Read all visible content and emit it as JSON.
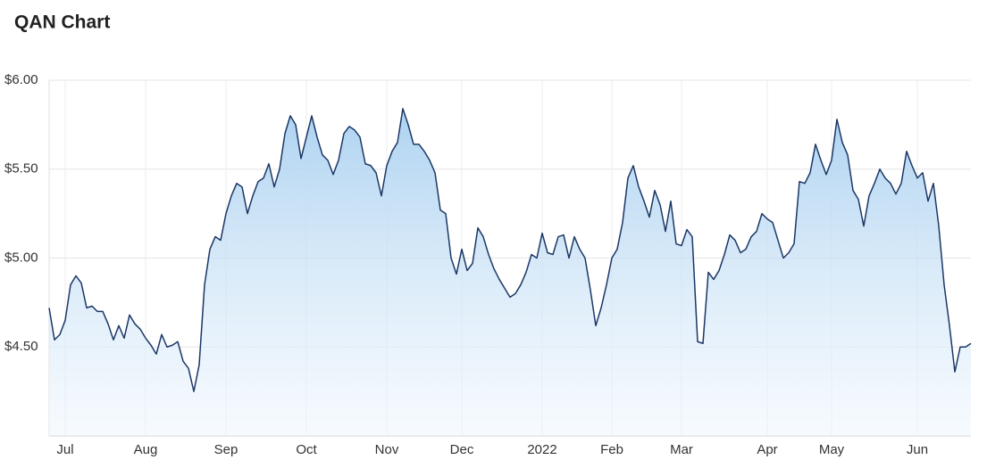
{
  "chart_data": {
    "type": "area",
    "title": "QAN Chart",
    "categories": [
      null,
      null,
      null,
      "Jul",
      null,
      null,
      null,
      null,
      null,
      null,
      null,
      null,
      null,
      null,
      null,
      null,
      null,
      null,
      "Aug",
      null,
      null,
      null,
      null,
      null,
      null,
      null,
      null,
      null,
      null,
      null,
      null,
      null,
      null,
      "Sep",
      null,
      null,
      null,
      null,
      null,
      null,
      null,
      null,
      null,
      null,
      null,
      null,
      null,
      null,
      "Oct",
      null,
      null,
      null,
      null,
      null,
      null,
      null,
      null,
      null,
      null,
      null,
      null,
      null,
      null,
      "Nov",
      null,
      null,
      null,
      null,
      null,
      null,
      null,
      null,
      null,
      null,
      null,
      null,
      null,
      "Dec",
      null,
      null,
      null,
      null,
      null,
      null,
      null,
      null,
      null,
      null,
      null,
      null,
      null,
      null,
      "2022",
      null,
      null,
      null,
      null,
      null,
      null,
      null,
      null,
      null,
      null,
      null,
      null,
      "Feb",
      null,
      null,
      null,
      null,
      null,
      null,
      null,
      null,
      null,
      null,
      null,
      null,
      "Mar",
      null,
      null,
      null,
      null,
      null,
      null,
      null,
      null,
      null,
      null,
      null,
      null,
      null,
      null,
      null,
      "Apr",
      null,
      null,
      null,
      null,
      null,
      null,
      null,
      null,
      null,
      null,
      null,
      "May",
      null,
      null,
      null,
      null,
      null,
      null,
      null,
      null,
      null,
      null,
      null,
      null,
      null,
      null,
      null,
      "Jun",
      null,
      null,
      null,
      null,
      null,
      null,
      null,
      null,
      null,
      null
    ],
    "series": [
      {
        "name": "QAN",
        "color": "#1b3766",
        "values": [
          4.72,
          4.54,
          4.57,
          4.65,
          4.85,
          4.9,
          4.86,
          4.72,
          4.73,
          4.7,
          4.7,
          4.63,
          4.54,
          4.62,
          4.55,
          4.68,
          4.63,
          4.6,
          4.55,
          4.51,
          4.46,
          4.57,
          4.5,
          4.51,
          4.53,
          4.42,
          4.38,
          4.25,
          4.4,
          4.85,
          5.05,
          5.12,
          5.1,
          5.25,
          5.35,
          5.42,
          5.4,
          5.25,
          5.35,
          5.43,
          5.45,
          5.53,
          5.4,
          5.5,
          5.7,
          5.8,
          5.75,
          5.56,
          5.68,
          5.8,
          5.68,
          5.58,
          5.55,
          5.47,
          5.55,
          5.7,
          5.74,
          5.72,
          5.68,
          5.53,
          5.52,
          5.48,
          5.35,
          5.52,
          5.6,
          5.65,
          5.84,
          5.75,
          5.64,
          5.64,
          5.6,
          5.55,
          5.48,
          5.27,
          5.25,
          5.0,
          4.91,
          5.05,
          4.93,
          4.97,
          5.17,
          5.12,
          5.02,
          4.94,
          4.88,
          4.83,
          4.78,
          4.8,
          4.85,
          4.92,
          5.02,
          5.0,
          5.14,
          5.03,
          5.02,
          5.12,
          5.13,
          5.0,
          5.12,
          5.05,
          5.0,
          4.82,
          4.62,
          4.72,
          4.85,
          5.0,
          5.05,
          5.2,
          5.45,
          5.52,
          5.4,
          5.32,
          5.23,
          5.38,
          5.3,
          5.15,
          5.32,
          5.08,
          5.07,
          5.16,
          5.12,
          4.53,
          4.52,
          4.92,
          4.88,
          4.93,
          5.02,
          5.13,
          5.1,
          5.03,
          5.05,
          5.12,
          5.15,
          5.25,
          5.22,
          5.2,
          5.1,
          5.0,
          5.03,
          5.08,
          5.43,
          5.42,
          5.48,
          5.64,
          5.55,
          5.47,
          5.55,
          5.78,
          5.65,
          5.58,
          5.38,
          5.33,
          5.18,
          5.35,
          5.42,
          5.5,
          5.45,
          5.42,
          5.36,
          5.42,
          5.6,
          5.52,
          5.45,
          5.48,
          5.32,
          5.42,
          5.18,
          4.85,
          4.62,
          4.36,
          4.5,
          4.5,
          4.52
        ]
      }
    ],
    "ylim": [
      4.0,
      6.0
    ],
    "yticks": [
      {
        "value": 4.5,
        "label": "$4.50"
      },
      {
        "value": 5.0,
        "label": "$5.00"
      },
      {
        "value": 5.5,
        "label": "$5.50"
      },
      {
        "value": 6.0,
        "label": "$6.00"
      }
    ],
    "grid": true
  }
}
